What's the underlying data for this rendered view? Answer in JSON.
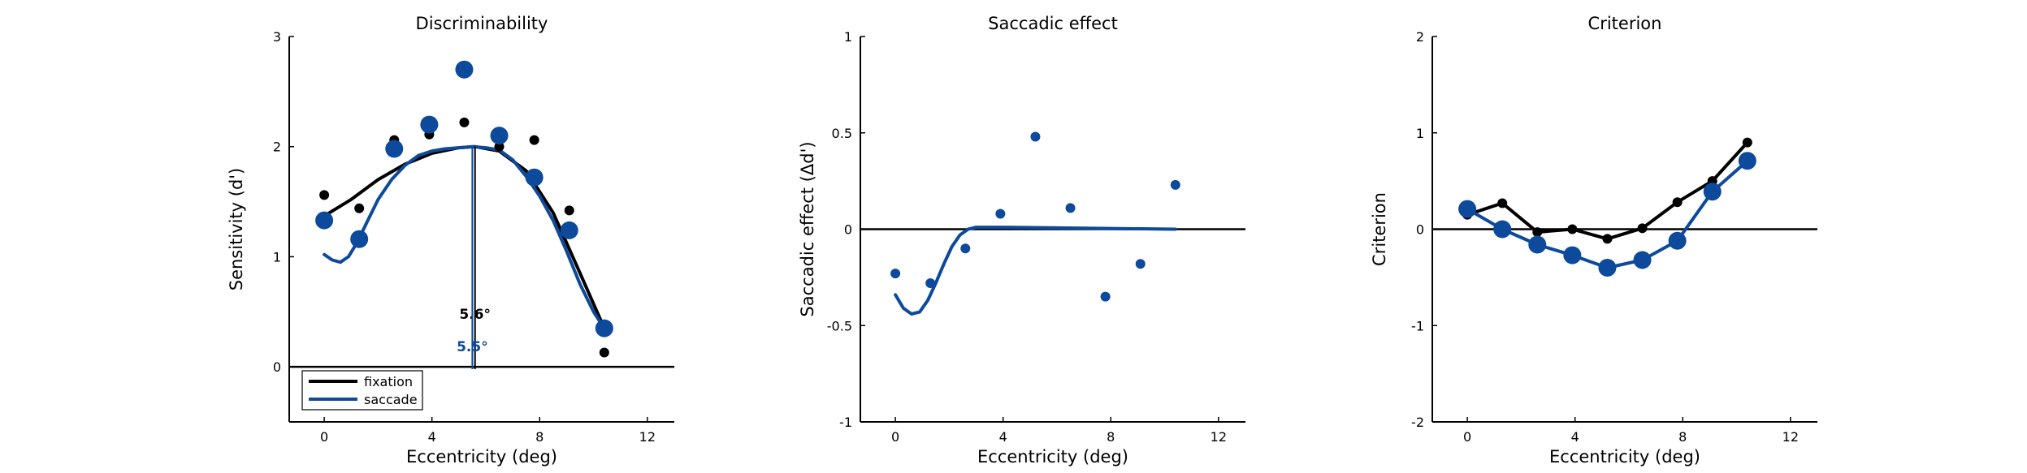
{
  "colors": {
    "fixation": "#000000",
    "saccade": "#0d4a9c",
    "axis": "#000000",
    "background": "#ffffff"
  },
  "chart_data": [
    {
      "type": "scatter",
      "title": "Discriminability",
      "xlabel": "Eccentricity (deg)",
      "ylabel": "Sensitivity (d')",
      "xlim": [
        -1.3,
        13
      ],
      "ylim": [
        -0.5,
        3
      ],
      "xticks": [
        0,
        4,
        8,
        12
      ],
      "yticks": [
        0,
        1,
        2,
        3
      ],
      "zero_line": true,
      "legend": {
        "placement": "bottom-left",
        "entries": [
          "fixation",
          "saccade"
        ]
      },
      "series": [
        {
          "name": "fixation",
          "x": [
            0,
            1.3,
            2.6,
            3.9,
            5.2,
            6.5,
            7.8,
            9.1,
            10.4
          ],
          "y": [
            1.56,
            1.44,
            2.06,
            2.11,
            2.22,
            2.0,
            2.06,
            1.42,
            0.13
          ]
        },
        {
          "name": "saccade",
          "x": [
            0,
            1.3,
            2.6,
            3.9,
            5.2,
            6.5,
            7.8,
            9.1,
            10.4
          ],
          "y": [
            1.33,
            1.16,
            1.98,
            2.2,
            2.7,
            2.1,
            1.72,
            1.24,
            0.35
          ]
        }
      ],
      "fit_lines": [
        {
          "name": "fixation",
          "x": [
            0,
            1,
            2,
            3,
            4,
            5,
            5.6,
            6.5,
            7.5,
            8.5,
            9.5,
            10.4
          ],
          "y": [
            1.37,
            1.52,
            1.7,
            1.84,
            1.94,
            1.99,
            2.0,
            1.96,
            1.78,
            1.4,
            0.85,
            0.35
          ]
        },
        {
          "name": "saccade",
          "x": [
            0,
            0.3,
            0.6,
            0.9,
            1.2,
            1.6,
            2.0,
            2.5,
            3.0,
            3.5,
            4.0,
            4.5,
            5.0,
            5.5,
            6.0,
            6.5,
            7.0,
            7.5,
            8.0,
            8.5,
            9.0,
            9.5,
            10.0,
            10.4
          ],
          "y": [
            1.02,
            0.97,
            0.95,
            1.0,
            1.12,
            1.32,
            1.52,
            1.7,
            1.83,
            1.92,
            1.96,
            1.98,
            1.99,
            2.0,
            1.99,
            1.97,
            1.88,
            1.73,
            1.55,
            1.33,
            1.05,
            0.75,
            0.5,
            0.35
          ]
        }
      ],
      "peaks": [
        {
          "name": "fixation",
          "x": 5.6,
          "label": "5.6°"
        },
        {
          "name": "saccade",
          "x": 5.5,
          "label": "5.5°"
        }
      ]
    },
    {
      "type": "scatter",
      "title": "Saccadic effect",
      "xlabel": "Eccentricity (deg)",
      "ylabel": "Saccadic effect (Δd')",
      "xlim": [
        -1.3,
        13
      ],
      "ylim": [
        -1,
        1
      ],
      "xticks": [
        0,
        4,
        8,
        12
      ],
      "yticks": [
        -1,
        -0.5,
        0,
        0.5,
        1
      ],
      "ytick_labels": [
        "-1",
        "-0.5",
        "0",
        "0.5",
        "1"
      ],
      "zero_line": true,
      "series": [
        {
          "name": "saccade",
          "x": [
            0,
            1.3,
            2.6,
            3.9,
            5.2,
            6.5,
            7.8,
            9.1,
            10.4
          ],
          "y": [
            -0.23,
            -0.28,
            -0.1,
            0.08,
            0.48,
            0.11,
            -0.35,
            -0.18,
            0.23
          ]
        }
      ],
      "fit_lines": [
        {
          "name": "saccade",
          "x": [
            0,
            0.3,
            0.6,
            0.9,
            1.2,
            1.5,
            1.8,
            2.1,
            2.4,
            2.7,
            3.0,
            3.4,
            4.0,
            10.4
          ],
          "y": [
            -0.34,
            -0.41,
            -0.44,
            -0.43,
            -0.37,
            -0.28,
            -0.18,
            -0.09,
            -0.03,
            0.0,
            0.01,
            0.01,
            0.01,
            0.0
          ]
        }
      ]
    },
    {
      "type": "line",
      "title": "Criterion",
      "xlabel": "Eccentricity (deg)",
      "ylabel": "Criterion",
      "xlim": [
        -1.3,
        13
      ],
      "ylim": [
        -2,
        2
      ],
      "xticks": [
        0,
        4,
        8,
        12
      ],
      "yticks": [
        -2,
        -1,
        0,
        1,
        2
      ],
      "zero_line": true,
      "series": [
        {
          "name": "fixation",
          "x": [
            0,
            1.3,
            2.6,
            3.9,
            5.2,
            6.5,
            7.8,
            9.1,
            10.4
          ],
          "y": [
            0.15,
            0.27,
            -0.03,
            0.0,
            -0.1,
            0.01,
            0.28,
            0.5,
            0.9
          ]
        },
        {
          "name": "saccade",
          "x": [
            0,
            1.3,
            2.6,
            3.9,
            5.2,
            6.5,
            7.8,
            9.1,
            10.4
          ],
          "y": [
            0.21,
            0.0,
            -0.16,
            -0.27,
            -0.4,
            -0.32,
            -0.12,
            0.39,
            0.71
          ]
        }
      ]
    }
  ]
}
